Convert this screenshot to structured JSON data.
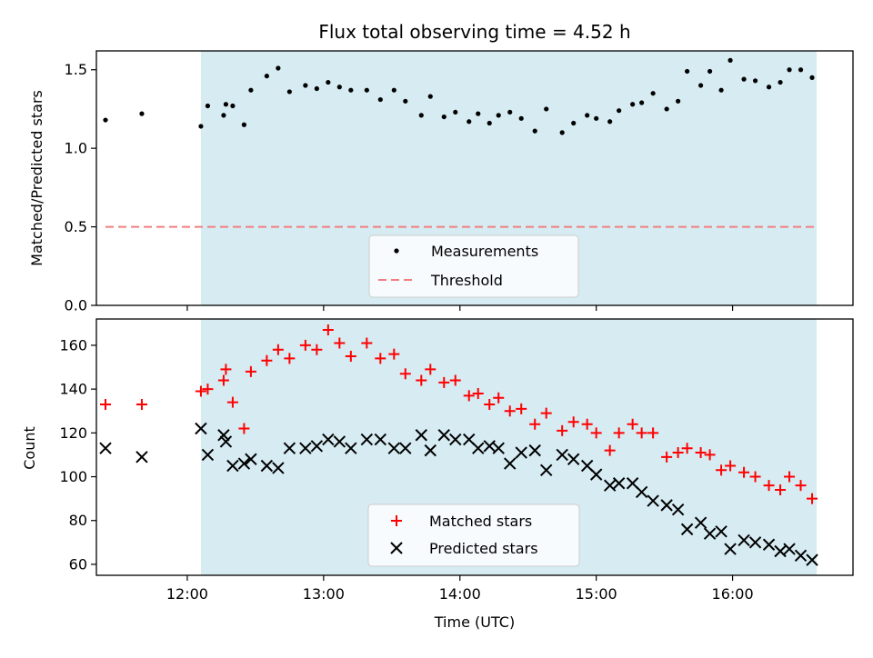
{
  "chart_data": [
    {
      "type": "scatter",
      "title": "Flux total observing time = 4.52 h",
      "xlabel": "",
      "ylabel": "Matched/Predicted stars",
      "ylim": [
        0,
        1.62
      ],
      "xlim": [
        "11:20",
        "16:53"
      ],
      "yticks": [
        "0.0",
        "0.5",
        "1.0",
        "1.5"
      ],
      "ytick_values": [
        0,
        0.5,
        1.0,
        1.5
      ],
      "legend_position": "bottom-center",
      "observing_window": {
        "start": "12:06",
        "end": "16:37",
        "color": "#add8e6"
      },
      "series": [
        {
          "name": "Measurements",
          "marker": "dot",
          "color": "#000000",
          "x": [
            "11:24",
            "11:40",
            "12:06",
            "12:09",
            "12:16",
            "12:17",
            "12:20",
            "12:25",
            "12:28",
            "12:35",
            "12:40",
            "12:45",
            "12:52",
            "12:57",
            "13:02",
            "13:07",
            "13:12",
            "13:19",
            "13:25",
            "13:31",
            "13:36",
            "13:43",
            "13:47",
            "13:53",
            "13:58",
            "14:04",
            "14:08",
            "14:13",
            "14:17",
            "14:22",
            "14:27",
            "14:33",
            "14:38",
            "14:45",
            "14:50",
            "14:56",
            "15:00",
            "15:06",
            "15:10",
            "15:16",
            "15:20",
            "15:25",
            "15:31",
            "15:36",
            "15:40",
            "15:46",
            "15:50",
            "15:55",
            "15:59",
            "16:05",
            "16:10",
            "16:16",
            "16:21",
            "16:25",
            "16:30",
            "16:35"
          ],
          "y": [
            1.18,
            1.22,
            1.14,
            1.27,
            1.21,
            1.28,
            1.27,
            1.15,
            1.37,
            1.46,
            1.51,
            1.36,
            1.4,
            1.38,
            1.42,
            1.39,
            1.37,
            1.37,
            1.31,
            1.37,
            1.3,
            1.21,
            1.33,
            1.2,
            1.23,
            1.17,
            1.22,
            1.16,
            1.21,
            1.23,
            1.19,
            1.11,
            1.25,
            1.1,
            1.16,
            1.21,
            1.19,
            1.17,
            1.24,
            1.28,
            1.29,
            1.35,
            1.25,
            1.3,
            1.49,
            1.4,
            1.49,
            1.37,
            1.56,
            1.44,
            1.43,
            1.39,
            1.42,
            1.5,
            1.5,
            1.45
          ]
        },
        {
          "name": "Threshold",
          "line_style": "dashed",
          "color": "#f08080",
          "x": [
            "11:24",
            "16:37"
          ],
          "y": [
            0.5,
            0.5
          ]
        }
      ]
    },
    {
      "type": "scatter",
      "title": "",
      "xlabel": "Time (UTC)",
      "ylabel": "Count",
      "ylim": [
        55,
        172
      ],
      "xlim": [
        "11:20",
        "16:53"
      ],
      "xticks": [
        "12:00",
        "13:00",
        "14:00",
        "15:00",
        "16:00"
      ],
      "yticks": [
        "60",
        "80",
        "100",
        "120",
        "140",
        "160"
      ],
      "ytick_values": [
        60,
        80,
        100,
        120,
        140,
        160
      ],
      "legend_position": "bottom-center",
      "observing_window": {
        "start": "12:06",
        "end": "16:37",
        "color": "#add8e6"
      },
      "series": [
        {
          "name": "Matched stars",
          "marker": "plus",
          "color": "#ff0000",
          "x": [
            "11:24",
            "11:40",
            "12:06",
            "12:09",
            "12:16",
            "12:17",
            "12:20",
            "12:25",
            "12:28",
            "12:35",
            "12:40",
            "12:45",
            "12:52",
            "12:57",
            "13:02",
            "13:07",
            "13:12",
            "13:19",
            "13:25",
            "13:31",
            "13:36",
            "13:43",
            "13:47",
            "13:53",
            "13:58",
            "14:04",
            "14:08",
            "14:13",
            "14:17",
            "14:22",
            "14:27",
            "14:33",
            "14:38",
            "14:45",
            "14:50",
            "14:56",
            "15:00",
            "15:06",
            "15:10",
            "15:16",
            "15:20",
            "15:25",
            "15:31",
            "15:36",
            "15:40",
            "15:46",
            "15:50",
            "15:55",
            "15:59",
            "16:05",
            "16:10",
            "16:16",
            "16:21",
            "16:25",
            "16:30",
            "16:35"
          ],
          "y": [
            133,
            133,
            139,
            140,
            144,
            149,
            134,
            122,
            148,
            153,
            158,
            154,
            160,
            158,
            167,
            161,
            155,
            161,
            154,
            156,
            147,
            144,
            149,
            143,
            144,
            137,
            138,
            133,
            136,
            130,
            131,
            124,
            129,
            121,
            125,
            124,
            120,
            112,
            120,
            124,
            120,
            120,
            109,
            111,
            113,
            111,
            110,
            103,
            105,
            102,
            100,
            96,
            94,
            100,
            96,
            90
          ]
        },
        {
          "name": "Predicted stars",
          "marker": "x",
          "color": "#000000",
          "x": [
            "11:24",
            "11:40",
            "12:06",
            "12:09",
            "12:16",
            "12:17",
            "12:20",
            "12:25",
            "12:28",
            "12:35",
            "12:40",
            "12:45",
            "12:52",
            "12:57",
            "13:02",
            "13:07",
            "13:12",
            "13:19",
            "13:25",
            "13:31",
            "13:36",
            "13:43",
            "13:47",
            "13:53",
            "13:58",
            "14:04",
            "14:08",
            "14:13",
            "14:17",
            "14:22",
            "14:27",
            "14:33",
            "14:38",
            "14:45",
            "14:50",
            "14:56",
            "15:00",
            "15:06",
            "15:10",
            "15:16",
            "15:20",
            "15:25",
            "15:31",
            "15:36",
            "15:40",
            "15:46",
            "15:50",
            "15:55",
            "15:59",
            "16:05",
            "16:10",
            "16:16",
            "16:21",
            "16:25",
            "16:30",
            "16:35"
          ],
          "y": [
            113,
            109,
            122,
            110,
            119,
            116,
            105,
            106,
            108,
            105,
            104,
            113,
            113,
            114,
            117,
            116,
            113,
            117,
            117,
            113,
            113,
            119,
            112,
            119,
            117,
            117,
            113,
            114,
            113,
            106,
            111,
            112,
            103,
            110,
            108,
            105,
            101,
            96,
            97,
            97,
            93,
            89,
            87,
            85,
            76,
            79,
            74,
            75,
            67,
            71,
            70,
            69,
            66,
            67,
            64,
            62
          ]
        }
      ]
    }
  ]
}
